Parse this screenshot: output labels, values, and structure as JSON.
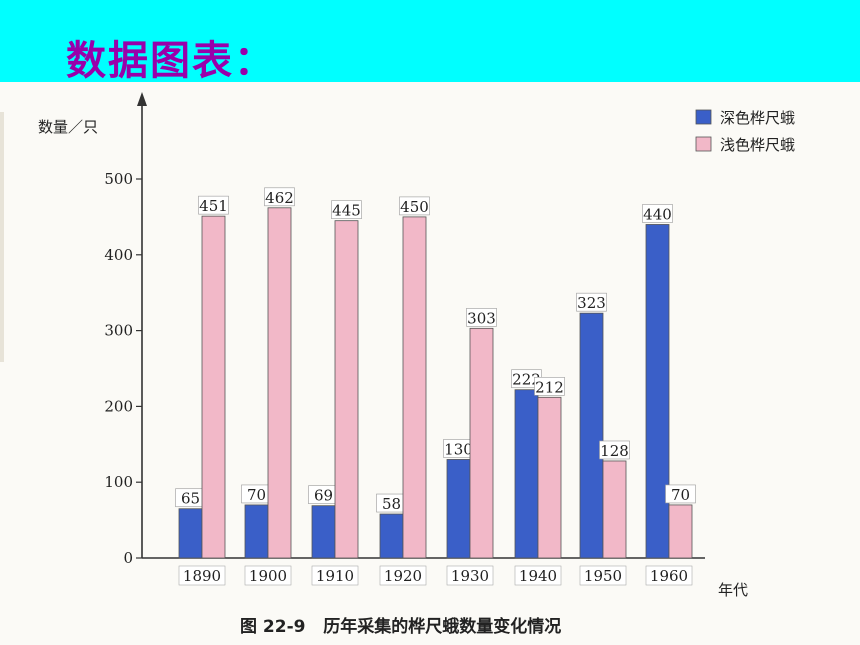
{
  "header": {
    "title": "数据图表："
  },
  "figure": {
    "caption": "图 22-9   历年采集的桦尺蛾数量变化情况"
  },
  "colors": {
    "header_bg": "#00ffff",
    "title": "#9900aa",
    "dark": "#3a5fc8",
    "light": "#f2b8c8"
  },
  "chart_data": {
    "type": "bar",
    "title": "",
    "ylabel": "数量／只",
    "xlabel": "年代",
    "ylim": [
      0,
      500
    ],
    "yticks": [
      0,
      100,
      200,
      300,
      400,
      500
    ],
    "categories": [
      "1890",
      "1900",
      "1910",
      "1920",
      "1930",
      "1940",
      "1950",
      "1960"
    ],
    "legend_position": "top-right",
    "series": [
      {
        "name": "深色桦尺蛾",
        "color": "#3a5fc8",
        "values": [
          65,
          70,
          69,
          58,
          130,
          222,
          323,
          440
        ]
      },
      {
        "name": "浅色桦尺蛾",
        "color": "#f2b8c8",
        "values": [
          451,
          462,
          445,
          450,
          303,
          212,
          128,
          70
        ]
      }
    ]
  }
}
